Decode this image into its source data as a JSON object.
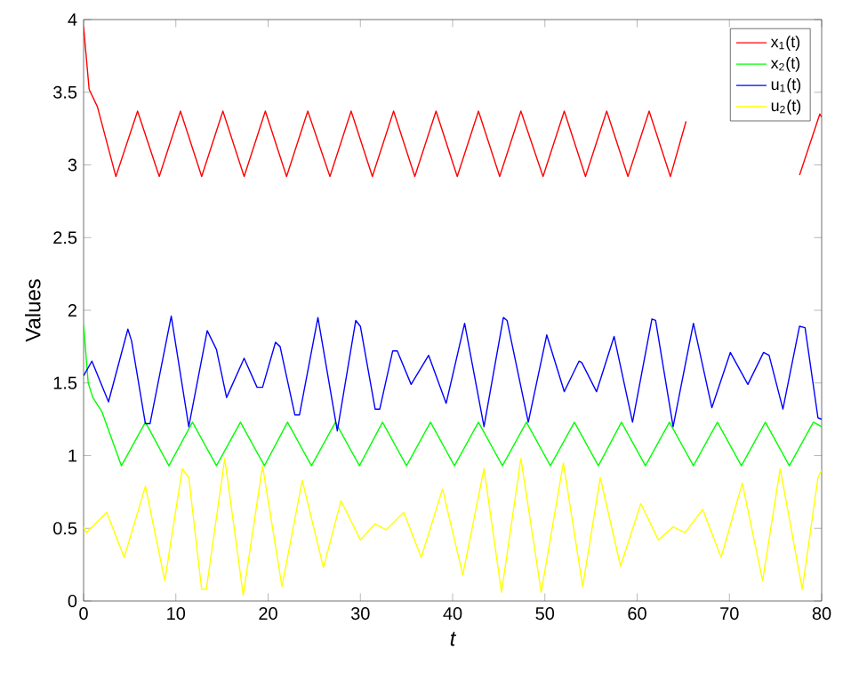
{
  "chart_data": {
    "type": "line",
    "xlabel": "t",
    "ylabel": "Values",
    "xlim": [
      0,
      80
    ],
    "xticks": [
      0,
      10,
      20,
      30,
      40,
      50,
      60,
      70,
      80
    ],
    "ylim": [
      0,
      4
    ],
    "yticks": [
      0,
      0.5,
      1,
      1.5,
      2,
      2.5,
      3,
      3.5,
      4
    ],
    "grid": false,
    "legend": "top right",
    "marker": "none",
    "line_style": "solid",
    "series": [
      {
        "name": "x$_{1}$(t)",
        "color": "#ff0000",
        "x": [
          0,
          0.6,
          1.5,
          3.5,
          5.85,
          8.2,
          10.5,
          12.8,
          15.1,
          17.4,
          19.7,
          22.0,
          24.3,
          26.7,
          29.0,
          31.3,
          33.6,
          35.9,
          38.2,
          40.5,
          42.8,
          45.1,
          47.4,
          49.8,
          52.1,
          54.4,
          56.7,
          59.0,
          61.3,
          63.6,
          65.3,
          70,
          77.6,
          79.8,
          80
        ],
        "values": [
          3.95,
          3.52,
          3.4,
          2.92,
          3.37,
          2.92,
          3.37,
          2.92,
          3.37,
          2.92,
          3.37,
          2.92,
          3.37,
          2.92,
          3.37,
          2.92,
          3.37,
          2.92,
          3.37,
          2.92,
          3.37,
          2.92,
          3.37,
          2.92,
          3.37,
          2.92,
          3.37,
          2.92,
          3.37,
          2.92,
          3.3,
          null,
          2.93,
          3.35,
          3.33
        ]
      },
      {
        "name": "x$_{2}$(t)",
        "color": "#00ff00",
        "x": [
          0,
          0.5,
          1,
          2,
          4.1,
          6.7,
          9.25,
          11.8,
          14.4,
          17.0,
          19.6,
          22.1,
          24.7,
          27.3,
          29.9,
          32.4,
          35.0,
          37.6,
          40.2,
          42.8,
          45.4,
          48.0,
          50.6,
          53.2,
          55.8,
          58.3,
          60.9,
          63.5,
          66.1,
          68.7,
          71.3,
          73.9,
          76.5,
          79.1,
          80
        ],
        "values": [
          1.9,
          1.5,
          1.4,
          1.3,
          0.93,
          1.23,
          0.93,
          1.23,
          0.93,
          1.23,
          0.93,
          1.23,
          0.93,
          1.23,
          0.93,
          1.23,
          0.93,
          1.23,
          0.93,
          1.23,
          0.93,
          1.23,
          0.93,
          1.23,
          0.93,
          1.23,
          0.93,
          1.23,
          0.93,
          1.23,
          0.93,
          1.23,
          0.93,
          1.23,
          1.2
        ]
      },
      {
        "name": "u$_{1}$(t)",
        "color": "#0000ff",
        "x": [
          0,
          0.9,
          2.7,
          4.8,
          5.2,
          6.7,
          7.2,
          9.5,
          11.4,
          13.4,
          14.4,
          15.5,
          17.4,
          18.8,
          19.4,
          20.8,
          21.3,
          22.9,
          23.4,
          25.4,
          27.5,
          29.5,
          30.0,
          31.6,
          32.1,
          33.5,
          34.0,
          35.5,
          37.4,
          39.3,
          41.3,
          43.4,
          45.5,
          45.9,
          48.2,
          50.2,
          52.1,
          53.7,
          54.0,
          55.6,
          57.5,
          59.5,
          61.6,
          62.0,
          63.9,
          66.1,
          68.1,
          70.1,
          72.0,
          73.7,
          74.3,
          75.8,
          77.6,
          78.2,
          79.6,
          80
        ],
        "values": [
          1.55,
          1.65,
          1.37,
          1.87,
          1.79,
          1.22,
          1.22,
          1.96,
          1.2,
          1.86,
          1.73,
          1.4,
          1.67,
          1.47,
          1.47,
          1.78,
          1.75,
          1.28,
          1.28,
          1.95,
          1.17,
          1.93,
          1.89,
          1.32,
          1.32,
          1.72,
          1.72,
          1.49,
          1.69,
          1.36,
          1.91,
          1.2,
          1.95,
          1.93,
          1.23,
          1.83,
          1.44,
          1.65,
          1.64,
          1.44,
          1.82,
          1.23,
          1.94,
          1.93,
          1.2,
          1.91,
          1.33,
          1.71,
          1.49,
          1.71,
          1.69,
          1.32,
          1.89,
          1.88,
          1.26,
          1.25
        ]
      },
      {
        "name": "u$_{2}$(t)",
        "color": "#ffff00",
        "x": [
          0,
          0.3,
          2.5,
          4.4,
          6.7,
          8.8,
          10.7,
          11.4,
          12.8,
          13.3,
          15.3,
          17.3,
          19.4,
          21.5,
          23.7,
          26.0,
          27.9,
          30.0,
          31.6,
          32.8,
          34.7,
          36.6,
          38.9,
          41.1,
          43.4,
          45.3,
          47.4,
          49.6,
          52.0,
          54.1,
          56.0,
          58.2,
          60.4,
          62.3,
          63.9,
          65.2,
          67.1,
          69.1,
          71.4,
          73.6,
          75.5,
          77.9,
          79.6,
          80
        ],
        "values": [
          0.51,
          0.47,
          0.61,
          0.3,
          0.79,
          0.14,
          0.91,
          0.85,
          0.08,
          0.08,
          0.98,
          0.04,
          0.93,
          0.1,
          0.83,
          0.23,
          0.69,
          0.42,
          0.53,
          0.49,
          0.61,
          0.3,
          0.77,
          0.18,
          0.91,
          0.06,
          0.98,
          0.06,
          0.95,
          0.1,
          0.85,
          0.24,
          0.67,
          0.42,
          0.51,
          0.47,
          0.63,
          0.3,
          0.81,
          0.14,
          0.91,
          0.08,
          0.85,
          0.9
        ]
      }
    ]
  }
}
